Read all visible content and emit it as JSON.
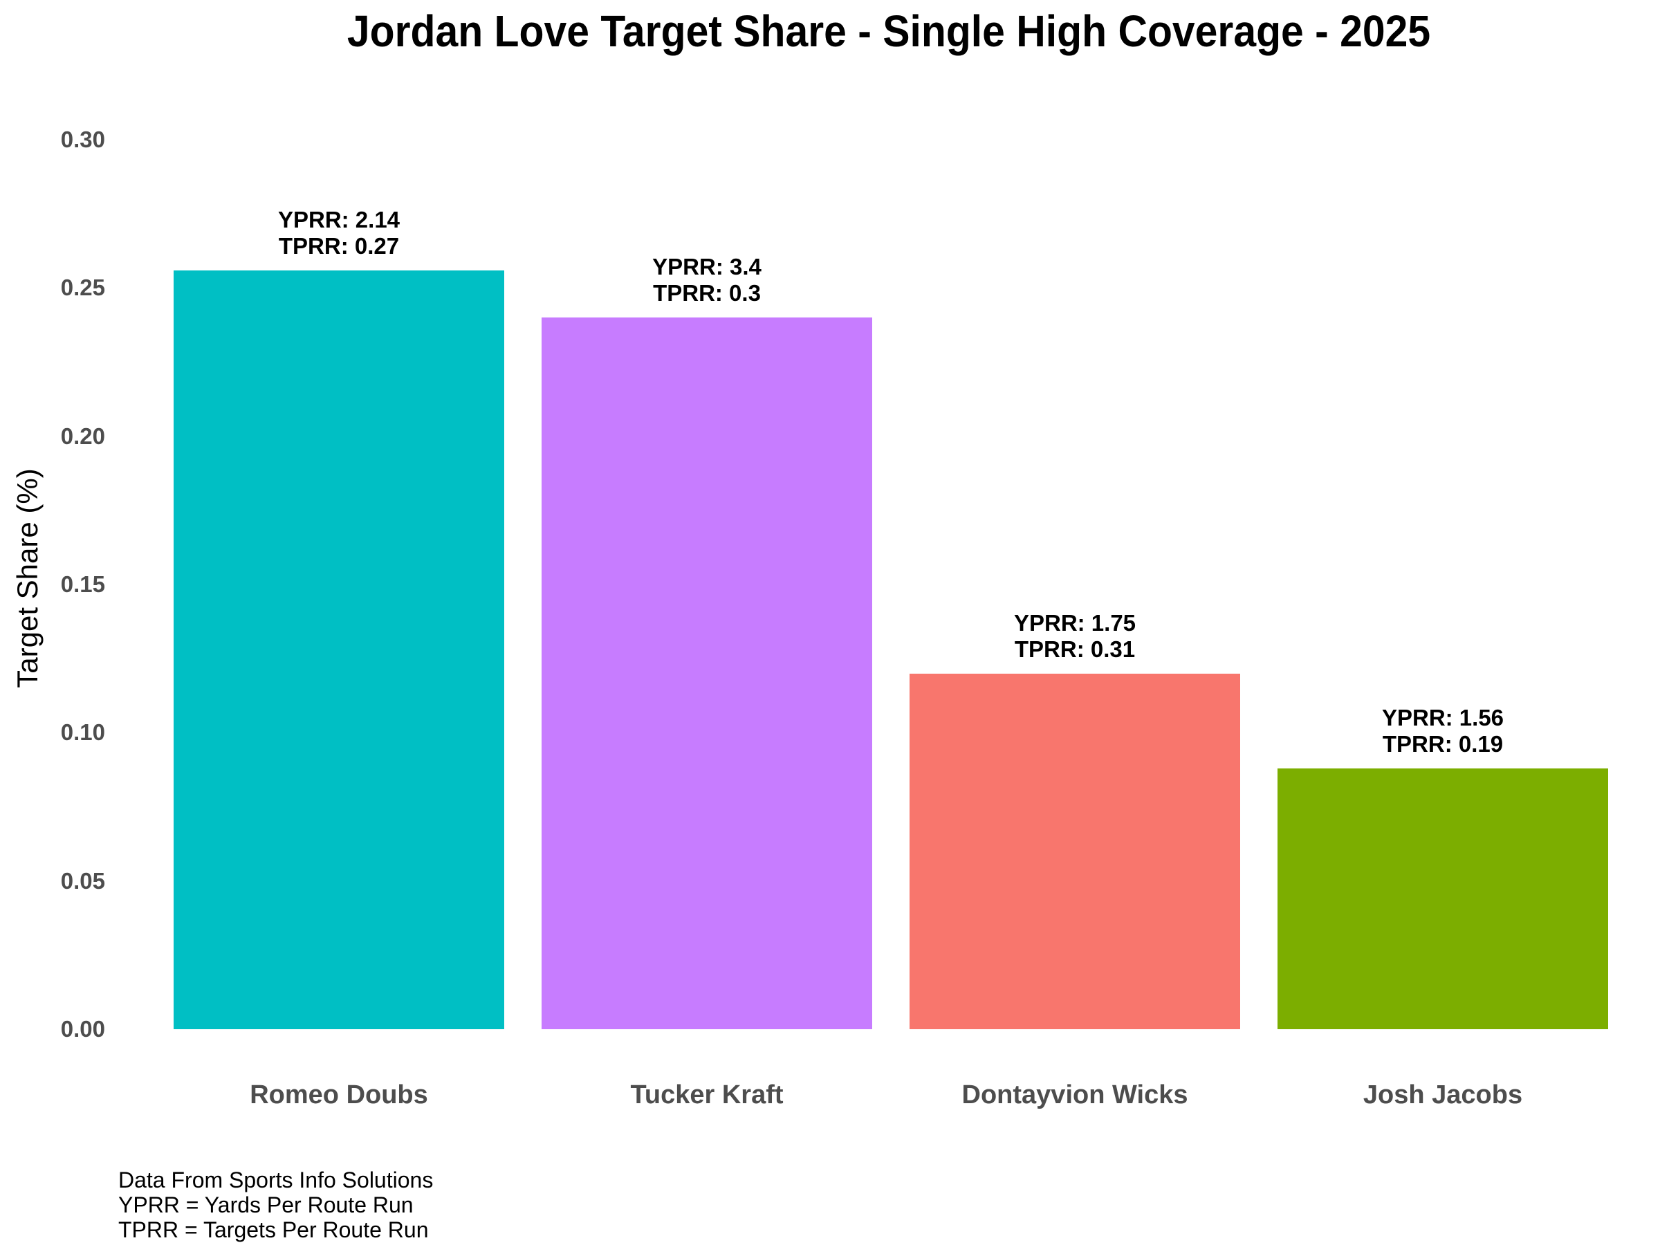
{
  "chart_data": {
    "type": "bar",
    "title": "Jordan Love Target Share - Single High Coverage - 2025",
    "xlabel": "",
    "ylabel": "Target Share (%)",
    "ylim": [
      0,
      0.3
    ],
    "yticks": [
      "0.00",
      "0.05",
      "0.10",
      "0.15",
      "0.20",
      "0.25",
      "0.30"
    ],
    "grid": false,
    "legend": null,
    "categories": [
      "Romeo Doubs",
      "Tucker Kraft",
      "Dontayvion Wicks",
      "Josh Jacobs"
    ],
    "values": [
      0.256,
      0.24,
      0.12,
      0.088
    ],
    "colors": [
      "#00BFC4",
      "#C77CFF",
      "#F8766D",
      "#7CAE00"
    ],
    "annotations": [
      {
        "yprr": "YPRR: 2.14",
        "tprr": "TPRR: 0.27"
      },
      {
        "yprr": "YPRR: 3.4",
        "tprr": "TPRR: 0.3"
      },
      {
        "yprr": "YPRR: 1.75",
        "tprr": "TPRR: 0.31"
      },
      {
        "yprr": "YPRR: 1.56",
        "tprr": "TPRR: 0.19"
      }
    ],
    "caption": [
      "Data From Sports Info Solutions",
      "YPRR = Yards Per Route Run",
      "TPRR = Targets Per Route Run"
    ]
  }
}
